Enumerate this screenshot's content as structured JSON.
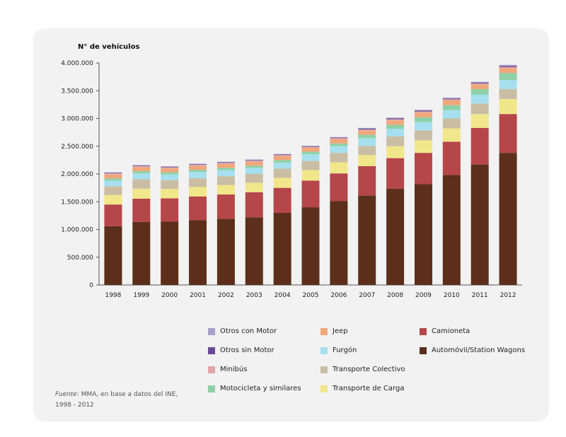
{
  "chart_data": {
    "type": "bar",
    "stacked": true,
    "ylabel": "N° de vehículos",
    "ylim": [
      0,
      4000000
    ],
    "yticks": [
      "0",
      "500.000",
      "1.000.000",
      "1.500.000",
      "2.000.000",
      "2.500.000",
      "3.000.000",
      "3.500.000",
      "4.000.000"
    ],
    "ytick_values": [
      0,
      500000,
      1000000,
      1500000,
      2000000,
      2500000,
      3000000,
      3500000,
      4000000
    ],
    "categories": [
      "1998",
      "1999",
      "2000",
      "2001",
      "2002",
      "2003",
      "2004",
      "2005",
      "2006",
      "2007",
      "2008",
      "2009",
      "2010",
      "2011",
      "2012"
    ],
    "legend_placement": "bottom",
    "series": [
      {
        "name": "Automóvil/Station Wagons",
        "color": "#5c2f1a",
        "values": [
          1060000,
          1135000,
          1140000,
          1165000,
          1190000,
          1220000,
          1300000,
          1400000,
          1510000,
          1610000,
          1735000,
          1815000,
          1980000,
          2170000,
          2380000
        ]
      },
      {
        "name": "Camioneta",
        "color": "#b5464a",
        "values": [
          390000,
          420000,
          420000,
          430000,
          440000,
          450000,
          450000,
          480000,
          500000,
          530000,
          550000,
          565000,
          600000,
          660000,
          700000
        ]
      },
      {
        "name": "Transporte de Carga",
        "color": "#f1e78a",
        "values": [
          170000,
          180000,
          170000,
          170000,
          170000,
          170000,
          180000,
          190000,
          200000,
          200000,
          215000,
          225000,
          240000,
          250000,
          270000
        ]
      },
      {
        "name": "Transporte Colectivo",
        "color": "#c9bea4",
        "values": [
          160000,
          170000,
          160000,
          160000,
          160000,
          160000,
          165000,
          165000,
          170000,
          165000,
          175000,
          180000,
          180000,
          190000,
          180000
        ]
      },
      {
        "name": "Furgón",
        "color": "#a6e0ee",
        "values": [
          100000,
          105000,
          100000,
          110000,
          110000,
          110000,
          110000,
          120000,
          120000,
          140000,
          140000,
          150000,
          150000,
          160000,
          160000
        ]
      },
      {
        "name": "Motocicleta y similares",
        "color": "#8fd1a6",
        "values": [
          40000,
          40000,
          40000,
          40000,
          40000,
          40000,
          45000,
          45000,
          50000,
          60000,
          70000,
          85000,
          90000,
          100000,
          130000
        ]
      },
      {
        "name": "Jeep",
        "color": "#f0a77a",
        "values": [
          70000,
          70000,
          70000,
          70000,
          70000,
          70000,
          70000,
          70000,
          75000,
          75000,
          80000,
          85000,
          85000,
          80000,
          85000
        ]
      },
      {
        "name": "Minibús",
        "color": "#e3a6a6",
        "values": [
          20000,
          20000,
          20000,
          20000,
          20000,
          20000,
          20000,
          20000,
          20000,
          20000,
          20000,
          20000,
          20000,
          20000,
          20000
        ]
      },
      {
        "name": "Otros sin Motor",
        "color": "#6b4a96",
        "values": [
          10000,
          10000,
          10000,
          10000,
          10000,
          10000,
          10000,
          10000,
          10000,
          15000,
          15000,
          15000,
          15000,
          15000,
          20000
        ]
      },
      {
        "name": "Otros con Motor",
        "color": "#a7a0c8",
        "values": [
          10000,
          10000,
          10000,
          10000,
          10000,
          10000,
          10000,
          10000,
          10000,
          15000,
          15000,
          15000,
          15000,
          15000,
          20000
        ]
      }
    ]
  },
  "legend": [
    {
      "label": "Otros con Motor",
      "color": "#a7a0c8"
    },
    {
      "label": "Jeep",
      "color": "#f0a77a"
    },
    {
      "label": "Camioneta",
      "color": "#b5464a"
    },
    {
      "label": "Otros sin Motor",
      "color": "#6b4a96"
    },
    {
      "label": "Furgón",
      "color": "#a6e0ee"
    },
    {
      "label": "Automóvil/Station Wagons",
      "color": "#5c2f1a"
    },
    {
      "label": "Minibús",
      "color": "#e3a6a6"
    },
    {
      "label": "Transporte Colectivo",
      "color": "#c9bea4"
    },
    {
      "label": "Motocicleta y similares",
      "color": "#8fd1a6"
    },
    {
      "label": "Transporte de Carga",
      "color": "#f1e78a"
    }
  ],
  "source": {
    "label": "Fuente",
    "text": ": MMA, en base a datos del INE,",
    "years": "1998 - 2012"
  }
}
